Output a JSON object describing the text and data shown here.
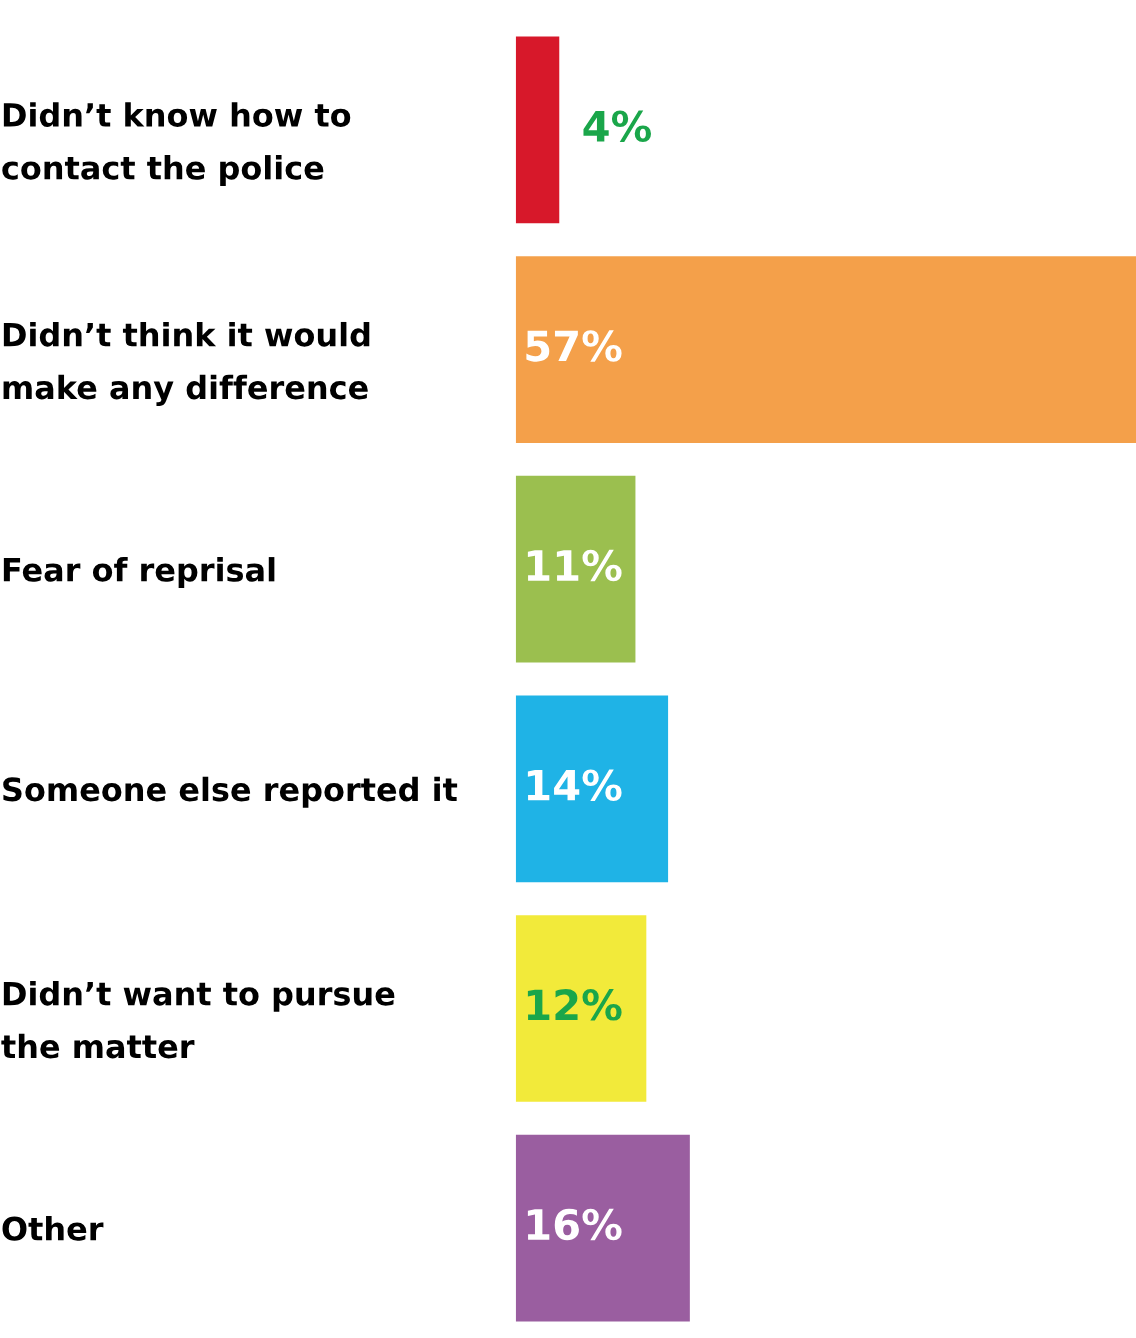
{
  "chart_data": {
    "type": "bar",
    "orientation": "horizontal",
    "categories": [
      "Didn’t know how to\ncontact the police",
      "Didn’t think it would\nmake any difference",
      "Fear of reprisal",
      "Someone else reported it",
      "Didn’t want to pursue\nthe matter",
      "Other"
    ],
    "values": [
      4,
      57,
      11,
      14,
      12,
      16
    ],
    "value_labels": [
      "4%",
      "57%",
      "11%",
      "14%",
      "12%",
      "16%"
    ],
    "colors": [
      "#d7182a",
      "#f4a04a",
      "#9bbf4f",
      "#1fb3e6",
      "#f2ea3a",
      "#9a5ea0"
    ],
    "tick_labels": "y",
    "grid": false,
    "legend": false
  }
}
